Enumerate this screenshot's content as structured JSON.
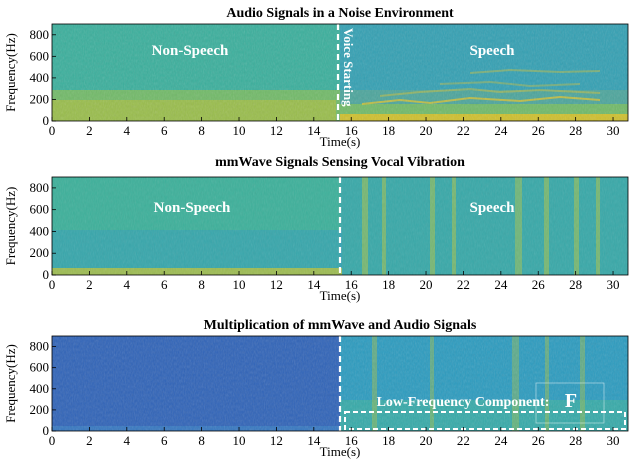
{
  "chart_data": [
    {
      "type": "heatmap",
      "title": "Audio Signals in a Noise Environment",
      "xlabel": "Time(s)",
      "ylabel": "Frequency(Hz)",
      "xlim": [
        0,
        30.8
      ],
      "ylim": [
        0,
        900
      ],
      "xticks": [
        0,
        2,
        4,
        6,
        8,
        10,
        12,
        14,
        16,
        18,
        20,
        22,
        24,
        26,
        28,
        30
      ],
      "yticks": [
        0,
        200,
        400,
        600,
        800
      ],
      "colormap": "parula",
      "divider_time": 15.2,
      "annotations": [
        {
          "text": "Non-Speech",
          "x": 7.3,
          "y": 680
        },
        {
          "text": "Speech",
          "x": 23.0,
          "y": 680
        },
        {
          "text": "Voice Starting",
          "x": 15.7,
          "y": 450,
          "rotation": 90
        }
      ]
    },
    {
      "type": "heatmap",
      "title": "mmWave Signals Sensing Vocal Vibration",
      "xlabel": "Time(s)",
      "ylabel": "Frequency(Hz)",
      "xlim": [
        0,
        30.8
      ],
      "ylim": [
        0,
        900
      ],
      "xticks": [
        0,
        2,
        4,
        6,
        8,
        10,
        12,
        14,
        16,
        18,
        20,
        22,
        24,
        26,
        28,
        30
      ],
      "yticks": [
        0,
        200,
        400,
        600,
        800
      ],
      "colormap": "parula",
      "divider_time": 15.0,
      "annotations": [
        {
          "text": "Non-Speech",
          "x": 7.4,
          "y": 680
        },
        {
          "text": "Speech",
          "x": 23.2,
          "y": 680
        }
      ]
    },
    {
      "type": "heatmap",
      "title": "Multiplication of mmWave and Audio Signals",
      "xlabel": "Time(s)",
      "ylabel": "Frequency(Hz)",
      "xlim": [
        0,
        30.8
      ],
      "ylim": [
        0,
        900
      ],
      "xticks": [
        0,
        2,
        4,
        6,
        8,
        10,
        12,
        14,
        16,
        18,
        20,
        22,
        24,
        26,
        28,
        30
      ],
      "yticks": [
        0,
        200,
        400,
        600,
        800
      ],
      "colormap": "parula",
      "divider_time": 15.0,
      "annotations": [
        {
          "text": "Low-Frequency Component:",
          "x": 21.5,
          "y": 240
        },
        {
          "text": "F",
          "x": 26.7,
          "y": 250
        }
      ],
      "highlight_box": {
        "x0": 15.3,
        "x1": 30.5,
        "y0": 0,
        "y1": 130
      }
    }
  ]
}
